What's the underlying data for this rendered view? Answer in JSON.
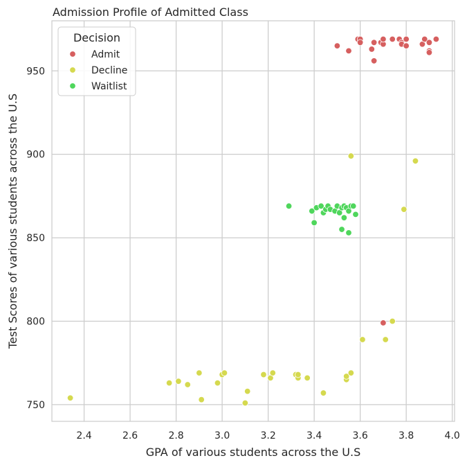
{
  "chart_data": {
    "type": "scatter",
    "title": "Admission Profile of Admitted Class",
    "xlabel": "GPA of various students across the U.S",
    "ylabel": "Test Scores of various students across the U.S",
    "xlim": [
      2.26,
      4.01
    ],
    "ylim": [
      740,
      980
    ],
    "xticks": [
      "2.4",
      "2.6",
      "2.8",
      "3.0",
      "3.2",
      "3.4",
      "3.6",
      "3.8",
      "4.0"
    ],
    "yticks": [
      "750",
      "800",
      "850",
      "900",
      "950"
    ],
    "grid": true,
    "legend_title": "Decision",
    "legend_placement": "top-left",
    "series": [
      {
        "name": "Admit",
        "color": "#d65f5f",
        "points": [
          [
            3.5,
            965
          ],
          [
            3.55,
            962
          ],
          [
            3.59,
            969
          ],
          [
            3.6,
            969
          ],
          [
            3.6,
            967
          ],
          [
            3.65,
            963
          ],
          [
            3.66,
            956
          ],
          [
            3.66,
            967
          ],
          [
            3.69,
            967
          ],
          [
            3.7,
            966
          ],
          [
            3.7,
            969
          ],
          [
            3.74,
            969
          ],
          [
            3.77,
            969
          ],
          [
            3.78,
            967
          ],
          [
            3.78,
            966
          ],
          [
            3.8,
            969
          ],
          [
            3.8,
            965
          ],
          [
            3.87,
            966
          ],
          [
            3.88,
            969
          ],
          [
            3.9,
            967
          ],
          [
            3.9,
            962
          ],
          [
            3.9,
            961
          ],
          [
            3.93,
            969
          ],
          [
            3.7,
            799
          ]
        ]
      },
      {
        "name": "Decline",
        "color": "#d5d94f",
        "points": [
          [
            2.34,
            754
          ],
          [
            2.77,
            763
          ],
          [
            2.81,
            764
          ],
          [
            2.85,
            762
          ],
          [
            2.9,
            769
          ],
          [
            2.91,
            753
          ],
          [
            2.98,
            763
          ],
          [
            3.0,
            768
          ],
          [
            3.01,
            769
          ],
          [
            3.1,
            751
          ],
          [
            3.11,
            758
          ],
          [
            3.18,
            768
          ],
          [
            3.21,
            766
          ],
          [
            3.22,
            769
          ],
          [
            3.32,
            768
          ],
          [
            3.33,
            766
          ],
          [
            3.33,
            768
          ],
          [
            3.37,
            766
          ],
          [
            3.44,
            757
          ],
          [
            3.54,
            765
          ],
          [
            3.54,
            767
          ],
          [
            3.56,
            769
          ],
          [
            3.61,
            789
          ],
          [
            3.71,
            789
          ],
          [
            3.74,
            800
          ],
          [
            3.56,
            899
          ],
          [
            3.84,
            896
          ],
          [
            3.79,
            867
          ]
        ]
      },
      {
        "name": "Waitlist",
        "color": "#4fd65c",
        "points": [
          [
            3.29,
            869
          ],
          [
            3.39,
            866
          ],
          [
            3.4,
            859
          ],
          [
            3.41,
            868
          ],
          [
            3.43,
            869
          ],
          [
            3.44,
            865
          ],
          [
            3.45,
            867
          ],
          [
            3.46,
            869
          ],
          [
            3.47,
            867
          ],
          [
            3.49,
            866
          ],
          [
            3.5,
            869
          ],
          [
            3.51,
            865
          ],
          [
            3.52,
            868
          ],
          [
            3.52,
            855
          ],
          [
            3.53,
            869
          ],
          [
            3.53,
            862
          ],
          [
            3.54,
            868
          ],
          [
            3.55,
            866
          ],
          [
            3.55,
            853
          ],
          [
            3.56,
            869
          ],
          [
            3.57,
            869
          ],
          [
            3.58,
            864
          ]
        ]
      }
    ]
  }
}
